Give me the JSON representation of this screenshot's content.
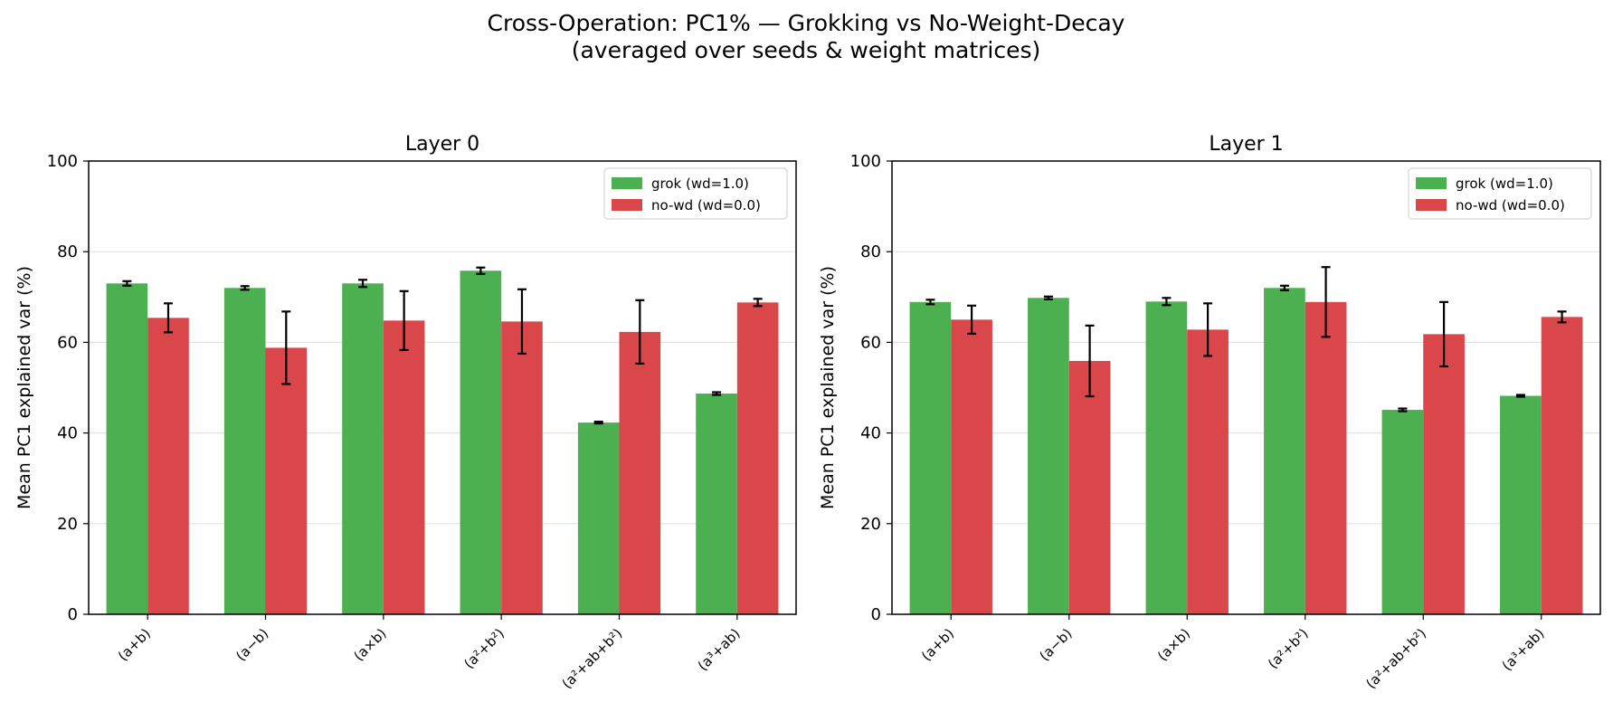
{
  "chart_data": {
    "title_line1": "Cross-Operation: PC1% — Grokking vs No-Weight-Decay",
    "title_line2": "(averaged over seeds & weight matrices)",
    "categories": [
      "(a+b)",
      "(a−b)",
      "(a×b)",
      "(a²+b²)",
      "(a²+ab+b²)",
      "(a³+ab)"
    ],
    "ylim": [
      0,
      100
    ],
    "yticks": [
      "0",
      "20",
      "40",
      "60",
      "80",
      "100"
    ],
    "grid": "horizontal",
    "legend_position": "top-right",
    "colors": {
      "grok": "#4caf50",
      "nowd": "#d9474a"
    },
    "panels": [
      {
        "type": "bar",
        "title": "Layer 0",
        "ylabel": "Mean PC1 explained var (%)",
        "series": [
          {
            "name": "grok (wd=1.0)",
            "values": [
              73.0,
              72.0,
              73.0,
              75.8,
              42.3,
              48.7
            ],
            "errors": [
              0.5,
              0.4,
              0.8,
              0.7,
              0.2,
              0.3
            ]
          },
          {
            "name": "no-wd (wd=0.0)",
            "values": [
              65.4,
              58.8,
              64.8,
              64.6,
              62.3,
              68.8
            ],
            "errors": [
              3.2,
              8.0,
              6.5,
              7.1,
              7.0,
              0.8
            ]
          }
        ]
      },
      {
        "type": "bar",
        "title": "Layer 1",
        "ylabel": "Mean PC1 explained var (%)",
        "series": [
          {
            "name": "grok (wd=1.0)",
            "values": [
              68.9,
              69.8,
              69.0,
              72.0,
              45.1,
              48.2
            ],
            "errors": [
              0.5,
              0.3,
              0.8,
              0.5,
              0.3,
              0.2
            ]
          },
          {
            "name": "no-wd (wd=0.0)",
            "values": [
              65.0,
              55.9,
              62.8,
              68.9,
              61.8,
              65.6
            ],
            "errors": [
              3.1,
              7.8,
              5.8,
              7.7,
              7.1,
              1.2
            ]
          }
        ]
      }
    ]
  }
}
